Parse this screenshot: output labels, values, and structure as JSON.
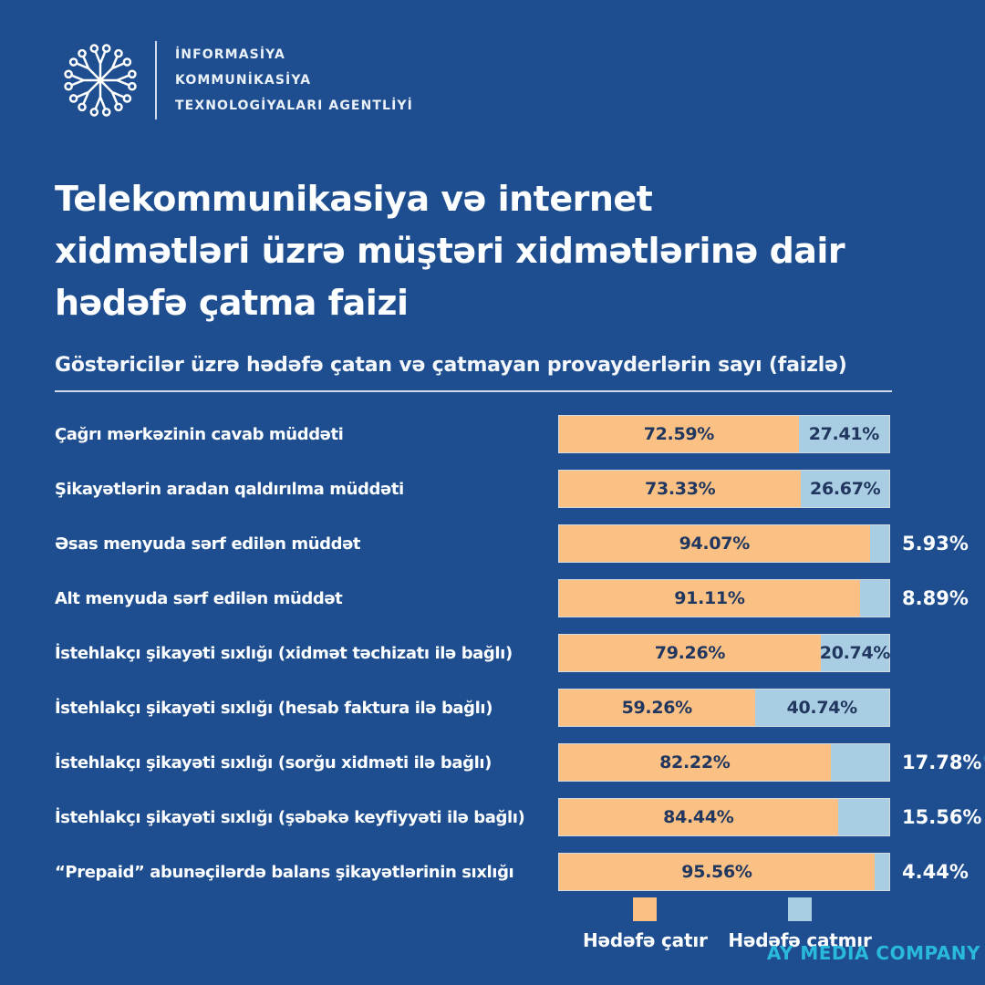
{
  "page": {
    "background_color": "#1E4E8F"
  },
  "header": {
    "agency_lines": [
      "İNFORMASİYA",
      "KOMMUNİKASİYA",
      "TEXNOLOGİYALARI AGENTLİYİ"
    ]
  },
  "title_lines": [
    "Telekommunikasiya və internet",
    "xidmətləri üzrə müştəri xidmətlərinə dair",
    "hədəfə çatma faizi"
  ],
  "subtitle": "Göstəricilər üzrə hədəfə çatan və çatmayan provayderlərin sayı (faizlə)",
  "chart_data": {
    "type": "bar",
    "orientation": "horizontal",
    "stacked": true,
    "title": "Göstəricilər üzrə hədəfə çatan və çatmayan provayderlərin sayı (faizlə)",
    "value_format": "percent",
    "xlim": [
      0,
      100
    ],
    "legend_position": "bottom",
    "categories": [
      "Çağrı mərkəzinin cavab müddəti",
      "Şikayətlərin aradan qaldırılma müddəti",
      "Əsas menyuda sərf edilən müddət",
      "Alt menyuda sərf edilən müddət",
      "İstehlakçı şikayəti sıxlığı (xidmət təchizatı ilə bağlı)",
      "İstehlakçı şikayəti sıxlığı (hesab faktura ilə bağlı)",
      "İstehlakçı şikayəti sıxlığı (sorğu xidməti ilə bağlı)",
      "İstehlakçı şikayəti sıxlığı (şəbəkə keyfiyyəti ilə bağlı)",
      "“Prepaid” abunəçilərdə balans şikayətlərinin sıxlığı"
    ],
    "series": [
      {
        "name": "Hədəfə çatır",
        "color": "#FBC184",
        "values": [
          72.59,
          73.33,
          94.07,
          91.11,
          79.26,
          59.26,
          82.22,
          84.44,
          95.56
        ]
      },
      {
        "name": "Hədəfə çatmır",
        "color": "#A9CDE2",
        "values": [
          27.41,
          26.67,
          5.93,
          8.89,
          20.74,
          40.74,
          17.78,
          15.56,
          4.44
        ]
      }
    ],
    "artifacts": [
      {
        "row": 6,
        "text": "%"
      }
    ]
  },
  "colors": {
    "bar_achieved": "#FBC184",
    "bar_not_achieved": "#A9CDE2",
    "inside_value_text": "#21375F",
    "outside_value_text": "#FDFEFF",
    "watermark": "#29B9DC"
  },
  "watermark": "AY MEDIA COMPANY"
}
